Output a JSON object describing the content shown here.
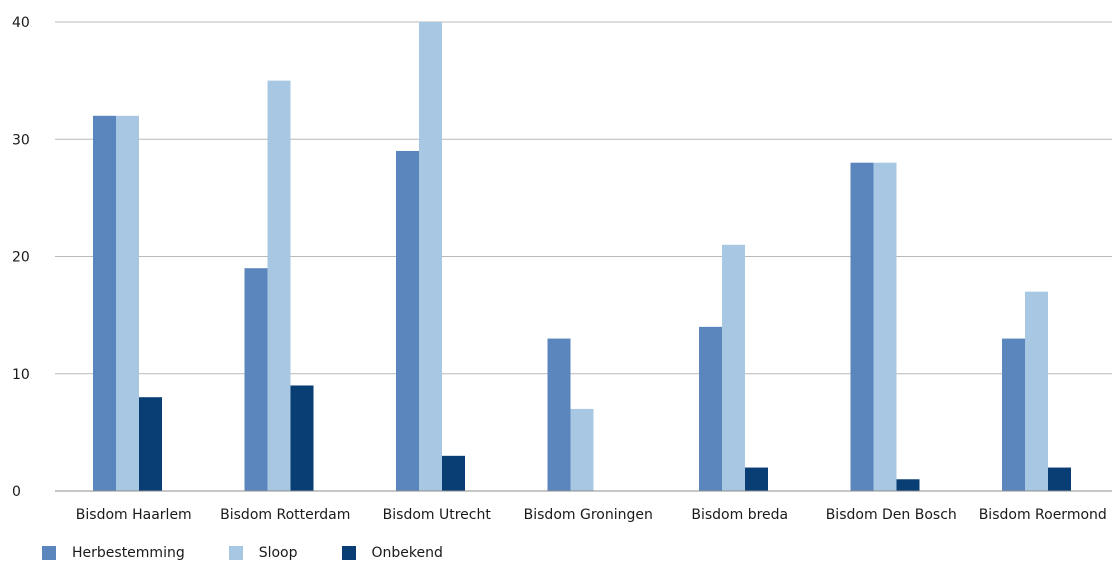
{
  "chart_data": {
    "type": "bar",
    "title": "",
    "xlabel": "",
    "ylabel": "",
    "ylim": [
      0,
      40
    ],
    "yticks": [
      "0",
      "10",
      "20",
      "30",
      "40"
    ],
    "grid": true,
    "legend_position": "bottom-left",
    "categories": [
      "Bisdom Haarlem",
      "Bisdom Rotterdam",
      "Bisdom Utrecht",
      "Bisdom Groningen",
      "Bisdom breda",
      "Bisdom Den Bosch",
      "Bisdom Roermond"
    ],
    "series": [
      {
        "name": "Herbestemming",
        "color": "#5b86bd",
        "values": [
          32,
          19,
          29,
          13,
          14,
          28,
          13
        ]
      },
      {
        "name": "Sloop",
        "color": "#a7c7e2",
        "values": [
          32,
          35,
          40,
          7,
          21,
          28,
          17
        ]
      },
      {
        "name": "Onbekend",
        "color": "#083e74",
        "values": [
          8,
          9,
          3,
          0,
          2,
          1,
          2
        ]
      }
    ]
  }
}
